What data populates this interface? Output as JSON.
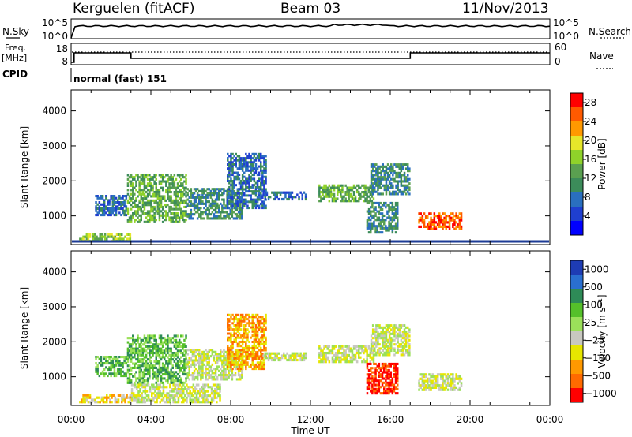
{
  "header": {
    "station": "Kerguelen (fitACF)",
    "beam": "Beam 03",
    "date": "11/Nov/2013"
  },
  "strips": {
    "nsky_label": "N.Sky",
    "nsky_ticks": [
      "10^5",
      "10^0"
    ],
    "nsearch_label": "N.Search",
    "nsearch_ticks": [
      "10^5",
      "10^0"
    ],
    "freq_label_1": "Freq.",
    "freq_label_2": "[MHz]",
    "freq_ticks": [
      "18",
      "8"
    ],
    "nave_label": "Nave",
    "nave_ticks": [
      "60",
      "0"
    ],
    "cpid_label": "CPID",
    "cpid_text": "normal (fast) 151"
  },
  "colors": {
    "power_scale": [
      "#0000ff",
      "#1f3fd0",
      "#2a6fbf",
      "#3c8c5a",
      "#5aa050",
      "#8fd22a",
      "#e6e62a",
      "#ff9900",
      "#ff5a00",
      "#ff0000"
    ],
    "velocity_scale": [
      "#1e3cb4",
      "#2a6fd0",
      "#2e8b57",
      "#55c02a",
      "#9be05a",
      "#c8c8c0",
      "#e6e600",
      "#ff9900",
      "#ff6a00",
      "#ff0000"
    ]
  },
  "chart_data": [
    {
      "type": "heatmap",
      "name": "power",
      "x": [
        "00:00",
        "04:00",
        "08:00",
        "12:00",
        "16:00",
        "20:00",
        "00:00"
      ],
      "xlabel": "Time UT",
      "ylabel": "Slant Range [km]",
      "yticks": [
        1000,
        2000,
        3000,
        4000
      ],
      "ylim": [
        180,
        4600
      ],
      "colorbar_label": "Power [dB]",
      "colorbar_ticks": [
        "4",
        "8",
        "12",
        "16",
        "20",
        "24",
        "28"
      ],
      "colorbar_range": [
        0,
        30
      ],
      "echo_regions": [
        {
          "t0": 1.2,
          "t1": 2.8,
          "r0": 1000,
          "r1": 1600,
          "value": 8
        },
        {
          "t0": 2.8,
          "t1": 5.8,
          "r0": 800,
          "r1": 2200,
          "value": 14
        },
        {
          "t0": 5.8,
          "t1": 8.6,
          "r0": 900,
          "r1": 1800,
          "value": 10
        },
        {
          "t0": 7.8,
          "t1": 9.8,
          "r0": 1200,
          "r1": 2800,
          "value": 6
        },
        {
          "t0": 9.6,
          "t1": 11.8,
          "r0": 1450,
          "r1": 1700,
          "value": 5
        },
        {
          "t0": 12.4,
          "t1": 15.2,
          "r0": 1400,
          "r1": 1900,
          "value": 12
        },
        {
          "t0": 15.0,
          "t1": 17.0,
          "r0": 1600,
          "r1": 2500,
          "value": 9
        },
        {
          "t0": 14.8,
          "t1": 16.4,
          "r0": 500,
          "r1": 1400,
          "value": 10
        },
        {
          "t0": 17.4,
          "t1": 19.6,
          "r0": 600,
          "r1": 1100,
          "value": 26
        },
        {
          "t0": 0.4,
          "t1": 3.0,
          "r0": 250,
          "r1": 500,
          "value": 18
        }
      ]
    },
    {
      "type": "heatmap",
      "name": "velocity",
      "x": [
        "00:00",
        "04:00",
        "08:00",
        "12:00",
        "16:00",
        "20:00",
        "00:00"
      ],
      "xlabel": "Time UT",
      "ylabel": "Slant Range [km]",
      "yticks": [
        1000,
        2000,
        3000,
        4000
      ],
      "ylim": [
        180,
        4600
      ],
      "colorbar_label": "Velocity [m s⁻¹]",
      "colorbar_ticks": [
        "1000",
        "500",
        "100",
        "25",
        "−25",
        "−100",
        "−500",
        "−1000"
      ],
      "echo_regions": [
        {
          "t0": 1.2,
          "t1": 2.8,
          "r0": 1000,
          "r1": 1600,
          "value": 100
        },
        {
          "t0": 2.8,
          "t1": 5.8,
          "r0": 800,
          "r1": 2200,
          "value": 50
        },
        {
          "t0": 3.0,
          "t1": 7.5,
          "r0": 250,
          "r1": 800,
          "value": 0
        },
        {
          "t0": 5.8,
          "t1": 8.6,
          "r0": 900,
          "r1": 1800,
          "value": 0
        },
        {
          "t0": 7.8,
          "t1": 9.8,
          "r0": 1200,
          "r1": 2800,
          "value": -400
        },
        {
          "t0": 9.6,
          "t1": 11.8,
          "r0": 1450,
          "r1": 1700,
          "value": 0
        },
        {
          "t0": 12.4,
          "t1": 15.2,
          "r0": 1400,
          "r1": 1900,
          "value": 0
        },
        {
          "t0": 15.0,
          "t1": 17.0,
          "r0": 1600,
          "r1": 2500,
          "value": 0
        },
        {
          "t0": 14.8,
          "t1": 16.4,
          "r0": 500,
          "r1": 1400,
          "value": -600
        },
        {
          "t0": 17.4,
          "t1": 19.6,
          "r0": 600,
          "r1": 1100,
          "value": 0
        },
        {
          "t0": 0.4,
          "t1": 3.0,
          "r0": 250,
          "r1": 500,
          "value": -100
        }
      ]
    }
  ]
}
